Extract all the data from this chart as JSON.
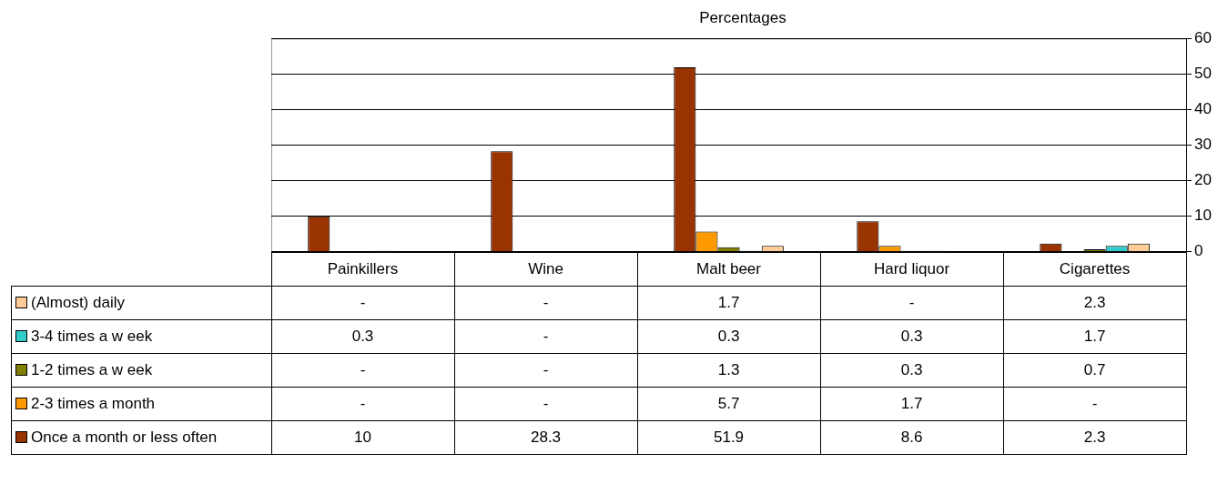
{
  "chart_data": {
    "type": "bar",
    "title": "Percentages",
    "categories": [
      "Painkillers",
      "Wine",
      "Malt beer",
      "Hard liquor",
      "Cigarettes"
    ],
    "series": [
      {
        "name": "Once a month or less often",
        "color": "#993300",
        "values": [
          10,
          28.3,
          51.9,
          8.6,
          2.3
        ],
        "value_labels": [
          "10",
          "28.3",
          "51.9",
          "8.6",
          "2.3"
        ]
      },
      {
        "name": "2-3 times a month",
        "color": "#ff9900",
        "values": [
          null,
          null,
          5.7,
          1.7,
          null
        ],
        "value_labels": [
          "-",
          "-",
          "5.7",
          "1.7",
          "-"
        ]
      },
      {
        "name": "1-2 times a w eek",
        "color": "#808000",
        "values": [
          null,
          null,
          1.3,
          0.3,
          0.7
        ],
        "value_labels": [
          "-",
          "-",
          "1.3",
          "0.3",
          "0.7"
        ]
      },
      {
        "name": "3-4 times a w eek",
        "color": "#33cccc",
        "values": [
          0.3,
          null,
          0.3,
          0.3,
          1.7
        ],
        "value_labels": [
          "0.3",
          "-",
          "0.3",
          "0.3",
          "1.7"
        ]
      },
      {
        "name": "(Almost) daily",
        "color": "#ffcc99",
        "values": [
          null,
          null,
          1.7,
          null,
          2.3
        ],
        "value_labels": [
          "-",
          "-",
          "1.7",
          "-",
          "2.3"
        ]
      }
    ],
    "ylim": [
      0,
      60
    ],
    "yticks": [
      0,
      10,
      20,
      30,
      40,
      50,
      60
    ],
    "grid": "y",
    "legend": "bottom left"
  }
}
